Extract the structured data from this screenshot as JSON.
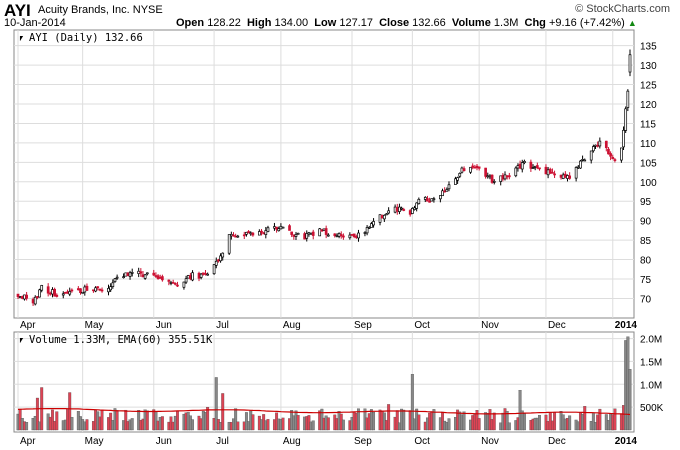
{
  "header": {
    "symbol": "AYI",
    "company": "Acuity Brands, Inc.",
    "exchange": "NYSE",
    "date": "10-Jan-2014",
    "open_label": "Open",
    "open": "128.22",
    "high_label": "High",
    "high": "134.00",
    "low_label": "Low",
    "low": "127.17",
    "close_label": "Close",
    "close": "132.66",
    "volume_label": "Volume",
    "volume": "1.3M",
    "chg_label": "Chg",
    "chg": "+9.16 (+7.42%)",
    "credit": "© StockCharts.com"
  },
  "colors": {
    "up": "#000000",
    "down": "#cc1133",
    "vol_up": "#888888",
    "vol_down": "#dd4455",
    "ema": "#cc0000",
    "grid": "#dddddd"
  },
  "chart_data": [
    {
      "type": "candlestick",
      "title": "AYI (Daily) 132.66",
      "legend_position": "top-left",
      "grid": true,
      "ylim": [
        66,
        138
      ],
      "y_ticks": [
        70,
        75,
        80,
        85,
        90,
        95,
        100,
        105,
        110,
        115,
        120,
        125,
        130,
        135
      ],
      "x_ticks": [
        "Apr",
        "May",
        "Jun",
        "Jul",
        "Aug",
        "Sep",
        "Oct",
        "Nov",
        "Dec",
        "2014"
      ],
      "x_range": [
        "2013-04-01",
        "2014-01-10"
      ],
      "close_anchors": [
        [
          "2013-04-01",
          71.0
        ],
        [
          "2013-04-08",
          69.0
        ],
        [
          "2013-04-12",
          73.0
        ],
        [
          "2013-04-19",
          71.0
        ],
        [
          "2013-04-26",
          71.5
        ],
        [
          "2013-05-03",
          72.5
        ],
        [
          "2013-05-10",
          72.0
        ],
        [
          "2013-05-17",
          75.0
        ],
        [
          "2013-05-24",
          77.0
        ],
        [
          "2013-05-31",
          76.0
        ],
        [
          "2013-06-07",
          75.0
        ],
        [
          "2013-06-14",
          74.0
        ],
        [
          "2013-06-21",
          76.0
        ],
        [
          "2013-06-28",
          75.5
        ],
        [
          "2013-07-03",
          80.0
        ],
        [
          "2013-07-08",
          86.0
        ],
        [
          "2013-07-15",
          86.5
        ],
        [
          "2013-07-22",
          87.0
        ],
        [
          "2013-07-29",
          88.5
        ],
        [
          "2013-08-05",
          87.0
        ],
        [
          "2013-08-12",
          86.0
        ],
        [
          "2013-08-19",
          87.5
        ],
        [
          "2013-08-26",
          86.5
        ],
        [
          "2013-09-03",
          86.0
        ],
        [
          "2013-09-09",
          87.5
        ],
        [
          "2013-09-16",
          91.0
        ],
        [
          "2013-09-23",
          93.0
        ],
        [
          "2013-09-30",
          92.0
        ],
        [
          "2013-10-04",
          96.0
        ],
        [
          "2013-10-11",
          95.0
        ],
        [
          "2013-10-18",
          99.0
        ],
        [
          "2013-10-25",
          103.5
        ],
        [
          "2013-11-01",
          103.0
        ],
        [
          "2013-11-08",
          100.0
        ],
        [
          "2013-11-15",
          102.0
        ],
        [
          "2013-11-22",
          105.0
        ],
        [
          "2013-11-29",
          103.0
        ],
        [
          "2013-12-06",
          102.0
        ],
        [
          "2013-12-13",
          101.0
        ],
        [
          "2013-12-20",
          106.0
        ],
        [
          "2013-12-27",
          110.0
        ],
        [
          "2014-01-03",
          106.0
        ],
        [
          "2014-01-06",
          109.0
        ],
        [
          "2014-01-08",
          119.0
        ],
        [
          "2014-01-09",
          123.5
        ],
        [
          "2014-01-10",
          132.66
        ]
      ],
      "last_candle": {
        "open": 128.22,
        "high": 134.0,
        "low": 127.17,
        "close": 132.66
      }
    },
    {
      "type": "bar",
      "title": "Volume 1.33M, EMA(60) 355.51K",
      "legend_position": "top-left",
      "ylim": [
        0,
        2100000
      ],
      "y_ticks": [
        [
          "500K",
          500000
        ],
        [
          "1.0M",
          1000000
        ],
        [
          "1.5M",
          1500000
        ],
        [
          "2.0M",
          2000000
        ]
      ],
      "x_ticks": [
        "Apr",
        "May",
        "Jun",
        "Jul",
        "Aug",
        "Sep",
        "Oct",
        "Nov",
        "Dec",
        "2014"
      ],
      "typical_volume": 350000,
      "spikes": [
        [
          "2013-04-10",
          700000
        ],
        [
          "2013-04-12",
          930000
        ],
        [
          "2013-04-25",
          820000
        ],
        [
          "2013-06-28",
          500000
        ],
        [
          "2013-07-02",
          1150000
        ],
        [
          "2013-07-05",
          800000
        ],
        [
          "2013-09-20",
          560000
        ],
        [
          "2013-10-01",
          1220000
        ],
        [
          "2013-10-22",
          440000
        ],
        [
          "2013-11-20",
          870000
        ],
        [
          "2013-12-20",
          520000
        ],
        [
          "2014-01-07",
          540000
        ],
        [
          "2014-01-08",
          1960000
        ],
        [
          "2014-01-09",
          2040000
        ],
        [
          "2014-01-10",
          1330000
        ]
      ],
      "ema_start": 450000,
      "ema_end": 355510
    }
  ]
}
